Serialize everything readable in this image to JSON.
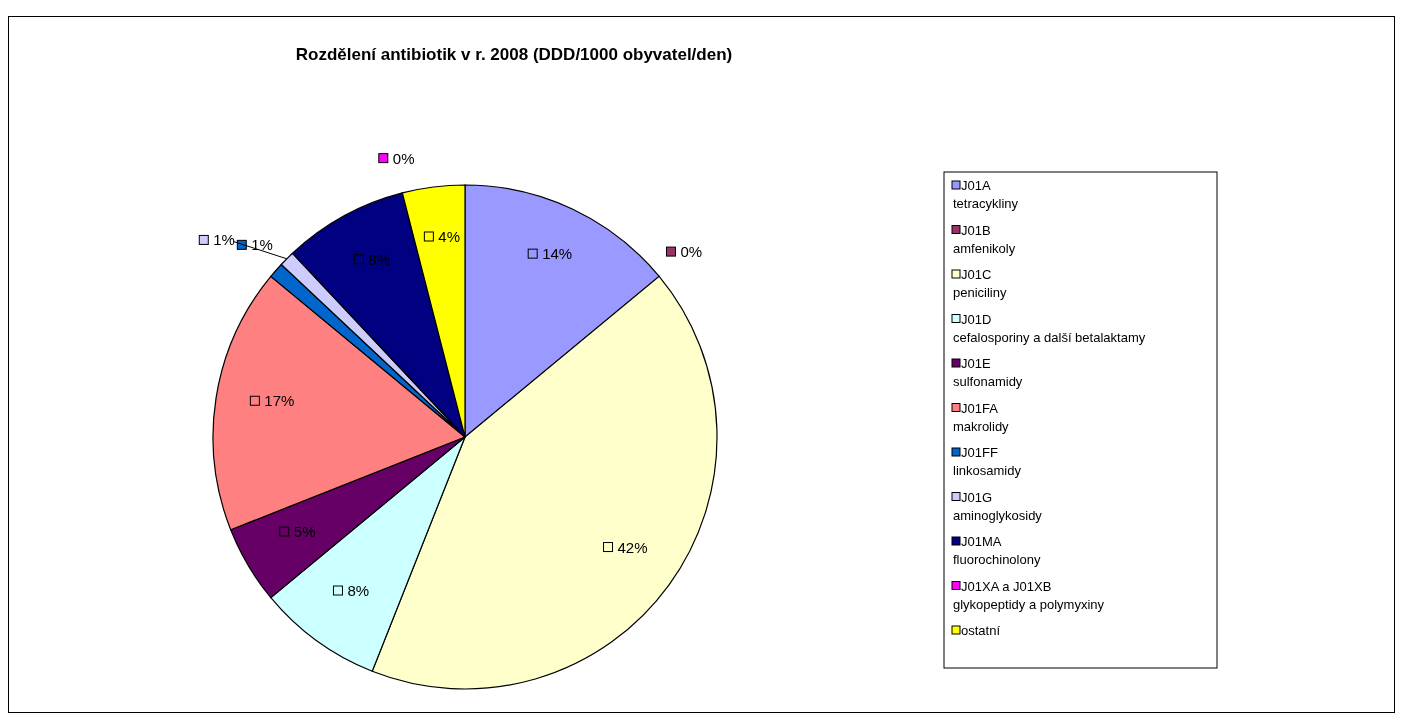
{
  "chart_data": {
    "type": "pie",
    "title": "Rozdělení antibiotik v r. 2008 (DDD/1000 obyvatel/den)",
    "categories": [
      "J01A\ntetracykliny",
      "J01B\namfenikoly",
      "J01C\npeniciliny",
      "J01D\ncefalosporiny a další betalaktamy",
      "J01E\nsulfonamidy",
      "J01FA\nmakrolidy",
      "J01FF\nlinkosamidy",
      "J01G\naminoglykosidy",
      "J01MA\nfluorochinolony",
      "J01XA a J01XB\nglykopeptidy a polymyxiny",
      "ostatní"
    ],
    "values": [
      14,
      0,
      42,
      8,
      5,
      17,
      1,
      1,
      8,
      0,
      4
    ],
    "value_labels": [
      "14%",
      "0%",
      "42%",
      "8%",
      "5%",
      "17%",
      "1%",
      "1%",
      "8%",
      "0%",
      "4%"
    ],
    "colors": [
      "#9999ff",
      "#993366",
      "#ffffcc",
      "#ccffff",
      "#660066",
      "#ff8080",
      "#0066cc",
      "#ccccff",
      "#000080",
      "#ff00ff",
      "#ffff00"
    ],
    "legend": "right"
  }
}
